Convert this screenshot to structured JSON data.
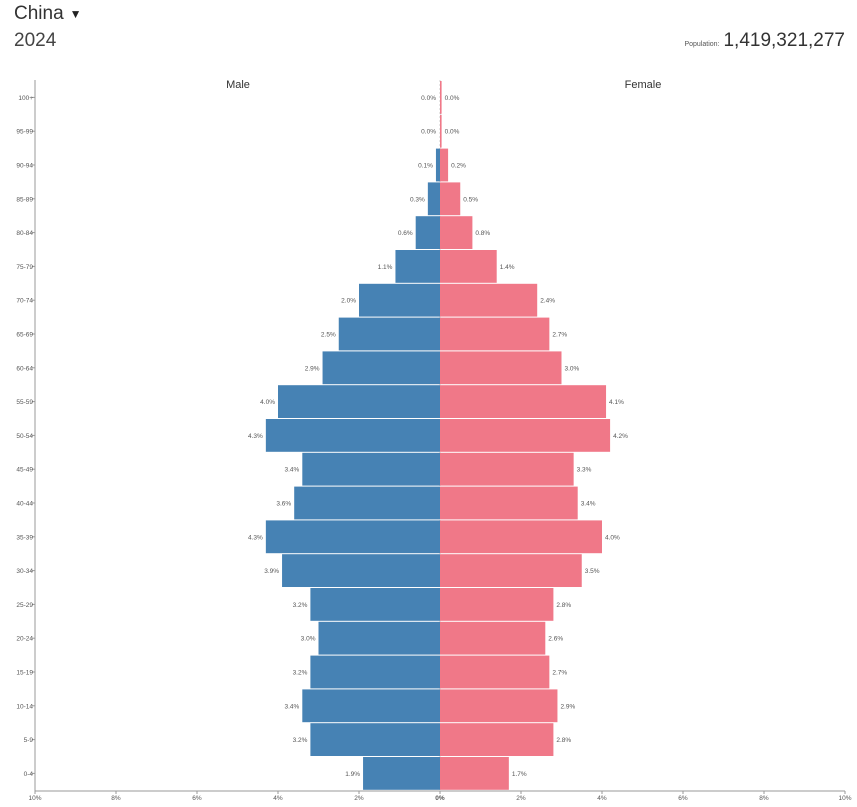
{
  "header": {
    "country": "China",
    "year": "2024",
    "population_label": "Population:",
    "population_value": "1,419,321,277"
  },
  "colors": {
    "male": "#4682B4",
    "female": "#F07888"
  },
  "chart_data": {
    "type": "bar",
    "orientation": "horizontal-pyramid",
    "series_labels": {
      "male": "Male",
      "female": "Female"
    },
    "categories": [
      "100+",
      "95-99",
      "90-94",
      "85-89",
      "80-84",
      "75-79",
      "70-74",
      "65-69",
      "60-64",
      "55-59",
      "50-54",
      "45-49",
      "40-44",
      "35-39",
      "30-34",
      "25-29",
      "20-24",
      "15-19",
      "10-14",
      "5-9",
      "0-4"
    ],
    "series": [
      {
        "name": "Male",
        "values": [
          0.0,
          0.0,
          0.1,
          0.3,
          0.6,
          1.1,
          2.0,
          2.5,
          2.9,
          4.0,
          4.3,
          3.4,
          3.6,
          4.3,
          3.9,
          3.2,
          3.0,
          3.2,
          3.4,
          3.2,
          1.9
        ]
      },
      {
        "name": "Female",
        "values": [
          0.0,
          0.0,
          0.2,
          0.5,
          0.8,
          1.4,
          2.4,
          2.7,
          3.0,
          4.1,
          4.2,
          3.3,
          3.4,
          4.0,
          3.5,
          2.8,
          2.6,
          2.7,
          2.9,
          2.8,
          1.7
        ]
      }
    ],
    "value_labels": {
      "male": [
        "0.0%",
        "0.0%",
        "0.1%",
        "0.3%",
        "0.6%",
        "1.1%",
        "2.0%",
        "2.5%",
        "2.9%",
        "4.0%",
        "4.3%",
        "3.4%",
        "3.6%",
        "4.3%",
        "3.9%",
        "3.2%",
        "3.0%",
        "3.2%",
        "3.4%",
        "3.2%",
        "1.9%"
      ],
      "female": [
        "0.0%",
        "0.0%",
        "0.2%",
        "0.5%",
        "0.8%",
        "1.4%",
        "2.4%",
        "2.7%",
        "3.0%",
        "4.1%",
        "4.2%",
        "3.3%",
        "3.4%",
        "4.0%",
        "3.5%",
        "2.8%",
        "2.6%",
        "2.7%",
        "2.9%",
        "2.8%",
        "1.7%"
      ]
    },
    "x_ticks": [
      "10%",
      "8%",
      "6%",
      "4%",
      "2%",
      "0%",
      "2%",
      "4%",
      "6%",
      "8%",
      "10%"
    ],
    "x_range": [
      -10,
      10
    ],
    "unit": "%"
  }
}
